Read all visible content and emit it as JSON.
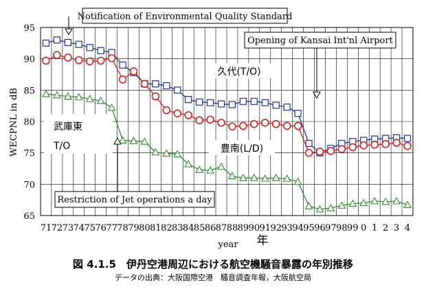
{
  "chart_data": {
    "type": "line",
    "ylabel": "WECPNL in dB",
    "xlabel": "year",
    "xlabel_jp": "年",
    "ylim": [
      65,
      95
    ],
    "yticks": [
      65,
      70,
      75,
      80,
      85,
      90,
      95
    ],
    "grid": true,
    "x_tick_labels": [
      "71",
      "72",
      "73",
      "74",
      "75",
      "76",
      "77",
      "78",
      "79",
      "80",
      "81",
      "82",
      "83",
      "84",
      "85",
      "86",
      "87",
      "88",
      "89",
      "90",
      "91",
      "92",
      "93",
      "94",
      "95",
      "96",
      "97",
      "98",
      "99",
      "0",
      "1",
      "2",
      "3",
      "4"
    ],
    "series": [
      {
        "name": "久代(T/O)",
        "color": "#1f2f9e",
        "marker": "square",
        "values": [
          92.5,
          93.0,
          92.6,
          92.3,
          91.8,
          91.3,
          91.0,
          89.0,
          87.8,
          86.0,
          86.0,
          85.7,
          85.0,
          83.5,
          83.1,
          83.0,
          82.8,
          82.7,
          83.2,
          83.2,
          83.0,
          82.6,
          82.3,
          81.3,
          76.5,
          75.0,
          75.7,
          76.5,
          76.8,
          77.0,
          77.2,
          77.3,
          77.4,
          77.3
        ]
      },
      {
        "name": "豊南(L/D)",
        "color": "#d41f1f",
        "marker": "circle",
        "values": [
          89.7,
          90.6,
          90.2,
          89.8,
          89.6,
          89.7,
          90.1,
          86.7,
          88.0,
          86.0,
          84.0,
          81.8,
          81.3,
          81.0,
          80.2,
          80.3,
          79.8,
          79.2,
          79.3,
          79.6,
          79.8,
          79.6,
          79.3,
          79.3,
          75.0,
          75.2,
          75.3,
          75.6,
          75.9,
          76.2,
          76.3,
          76.4,
          76.6,
          76.1
        ]
      },
      {
        "name": "武庫東 T/O",
        "color": "#2e8a2e",
        "marker": "triangle",
        "values": [
          84.4,
          84.2,
          84.0,
          83.9,
          83.6,
          83.3,
          82.2,
          77.0,
          76.9,
          76.8,
          75.1,
          74.9,
          74.8,
          73.2,
          72.3,
          72.2,
          72.8,
          71.3,
          71.0,
          71.0,
          70.9,
          71.0,
          70.9,
          70.4,
          66.5,
          66.0,
          66.2,
          66.6,
          66.9,
          67.0,
          67.3,
          67.2,
          67.3,
          66.7
        ]
      }
    ],
    "annotations": [
      "Notification of Environmental Quality Standard",
      "Opening of Kansai Int'nl Airport",
      "Restriction of Jet operations a day"
    ]
  },
  "caption": {
    "title": "図 4.1.5　伊丹空港周辺における航空機騒音暴露の年別推移",
    "source": "データの出典：大阪国際空港　騒音調査年報，大阪航空局"
  }
}
